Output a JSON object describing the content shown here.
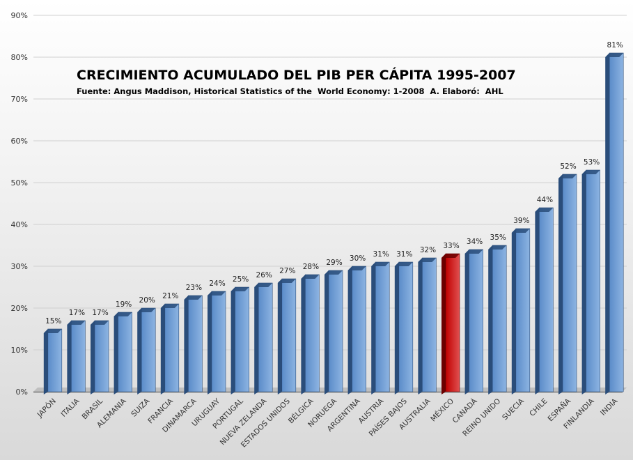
{
  "chart_data": {
    "type": "bar",
    "title": "CRECIMIENTO ACUMULADO DEL PIB PER CÁPITA 1995-2007",
    "subtitle": "Fuente: Angus Maddison, Historical Statistics of the  World Economy: 1-2008  A. Elaboró:  AHL",
    "xlabel": "",
    "ylabel": "",
    "ylim": [
      0,
      90
    ],
    "y_ticks": [
      0,
      10,
      20,
      30,
      40,
      50,
      60,
      70,
      80,
      90
    ],
    "y_tick_labels": [
      "0%",
      "10%",
      "20%",
      "30%",
      "40%",
      "50%",
      "60%",
      "70%",
      "80%",
      "90%"
    ],
    "grid": true,
    "legend": "none",
    "categories": [
      "JAPÓN",
      "ITALIA",
      "BRASIL",
      "ALEMANIA",
      "SUIZA",
      "FRANCIA",
      "DINAMARCA",
      "URUGUAY",
      "PORTUGAL",
      "NUEVA ZELANDA",
      "ESTADOS UNIDOS",
      "BÉLGICA",
      "NORUEGA",
      "ARGENTINA",
      "AUSTRIA",
      "PAÍSES BAJOS",
      "AUSTRALIA",
      "MÉXICO",
      "CANADÁ",
      "REINO UNIDO",
      "SUECIA",
      "CHILE",
      "ESPAÑA",
      "FINLANDIA",
      "INDIA"
    ],
    "values": [
      15,
      17,
      17,
      19,
      20,
      21,
      23,
      24,
      25,
      26,
      27,
      28,
      29,
      30,
      31,
      31,
      32,
      33,
      34,
      35,
      39,
      44,
      52,
      53,
      81
    ],
    "data_labels": [
      "15%",
      "17%",
      "17%",
      "19%",
      "20%",
      "21%",
      "23%",
      "24%",
      "25%",
      "26%",
      "27%",
      "28%",
      "29%",
      "30%",
      "31%",
      "31%",
      "32%",
      "33%",
      "34%",
      "35%",
      "39%",
      "44%",
      "52%",
      "53%",
      "81%"
    ],
    "highlight_category": "MÉXICO",
    "colors": {
      "bar_front": "#5b8cc9",
      "bar_side": "#2a4d7a",
      "bar_top": "#8db4e2",
      "highlight_front": "#c00000",
      "highlight_side": "#6b0000",
      "highlight_top": "#e05050",
      "floor": "#bfbfbf",
      "grid": "#d0d0d0"
    }
  }
}
